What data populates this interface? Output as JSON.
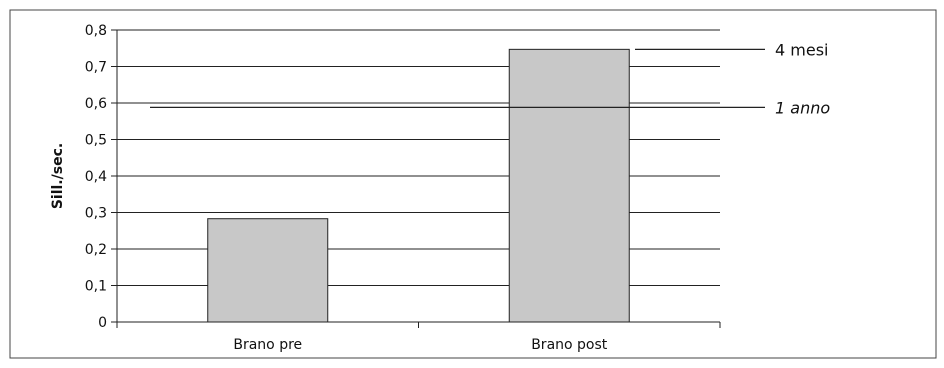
{
  "chart_data": {
    "type": "bar",
    "title": "",
    "xlabel": "",
    "ylabel": "Sill./sec.",
    "ylim": [
      0,
      0.8
    ],
    "yticks": [
      0,
      0.1,
      0.2,
      0.3,
      0.4,
      0.5,
      0.6,
      0.7,
      0.8
    ],
    "ytick_labels": [
      "0",
      "0,1",
      "0,2",
      "0,3",
      "0,4",
      "0,5",
      "0,6",
      "0,7",
      "0,8"
    ],
    "categories": [
      "Brano pre",
      "Brano post"
    ],
    "values": [
      0.283,
      0.747
    ],
    "grid": true,
    "legend": "none",
    "bar_color": "#c8c8c8",
    "reference_lines": [
      {
        "label": "4 mesi",
        "value": 0.747,
        "style": "normal"
      },
      {
        "label": "1 anno",
        "value": 0.588,
        "style": "italic"
      }
    ]
  }
}
